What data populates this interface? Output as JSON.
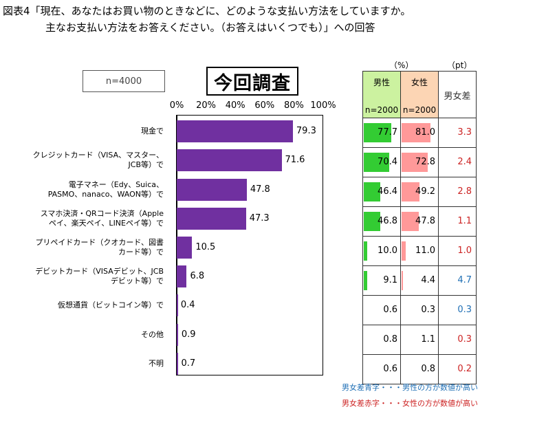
{
  "header": {
    "title_line1": "図表4「現在、あなたはお買い物のときなどに、どのような支払い方法をしていますか。",
    "title_line2": "主なお支払い方法をお答えください。（お答えはいくつでも）」への回答"
  },
  "sample_label": "n=4000",
  "survey_label": "今回調査",
  "table": {
    "unit_pct": "（%）",
    "unit_pt": "（pt）",
    "male_header": "男性",
    "male_n": "n=2000",
    "female_header": "女性",
    "female_n": "n=2000",
    "diff_header": "男女差"
  },
  "colors": {
    "bar": "#7030a0",
    "male_fill": "#33cc33",
    "female_fill": "#ff9999",
    "diff_red": "#cc2222",
    "diff_blue": "#1f6fb5",
    "male_header_bg": "#ccf2a0",
    "female_header_bg": "#fcd5b4"
  },
  "legend": {
    "blue": "男女差青字・・・男性の方が数値が高い",
    "red": "男女差赤字・・・女性の方が数値が高い"
  },
  "chart_data": {
    "type": "bar",
    "orientation": "horizontal",
    "title": "今回調査",
    "xlim": [
      0,
      100
    ],
    "ticks": [
      "0%",
      "20%",
      "40%",
      "60%",
      "80%",
      "100%"
    ],
    "categories": [
      [
        "現金で"
      ],
      [
        "クレジットカード（VISA、マスター、",
        "JCB等）で"
      ],
      [
        "電子マネー（Edy、Suica、",
        "PASMO、nanaco、WAON等）で"
      ],
      [
        "スマホ決済・QRコード決済（Apple",
        "ペイ、楽天ペイ、LINEペイ等）で"
      ],
      [
        "プリペイドカード（クオカード、図書",
        "カード等）で"
      ],
      [
        "デビットカード（VISAデビット、JCB",
        "デビット等）で"
      ],
      [
        "仮想通貨（ビットコイン等）で"
      ],
      [
        "その他"
      ],
      [
        "不明"
      ]
    ],
    "values": [
      79.3,
      71.6,
      47.8,
      47.3,
      10.5,
      6.8,
      0.4,
      0.9,
      0.7
    ],
    "male": [
      77.7,
      70.4,
      46.4,
      46.8,
      10.0,
      9.1,
      0.6,
      0.8,
      0.6
    ],
    "female": [
      81.0,
      72.8,
      49.2,
      47.8,
      11.0,
      4.4,
      0.3,
      1.1,
      0.8
    ],
    "diff": [
      3.3,
      2.4,
      2.8,
      1.1,
      1.0,
      4.7,
      0.3,
      0.3,
      0.2
    ],
    "diff_color": [
      "red",
      "red",
      "red",
      "red",
      "red",
      "blue",
      "blue",
      "red",
      "red"
    ]
  }
}
